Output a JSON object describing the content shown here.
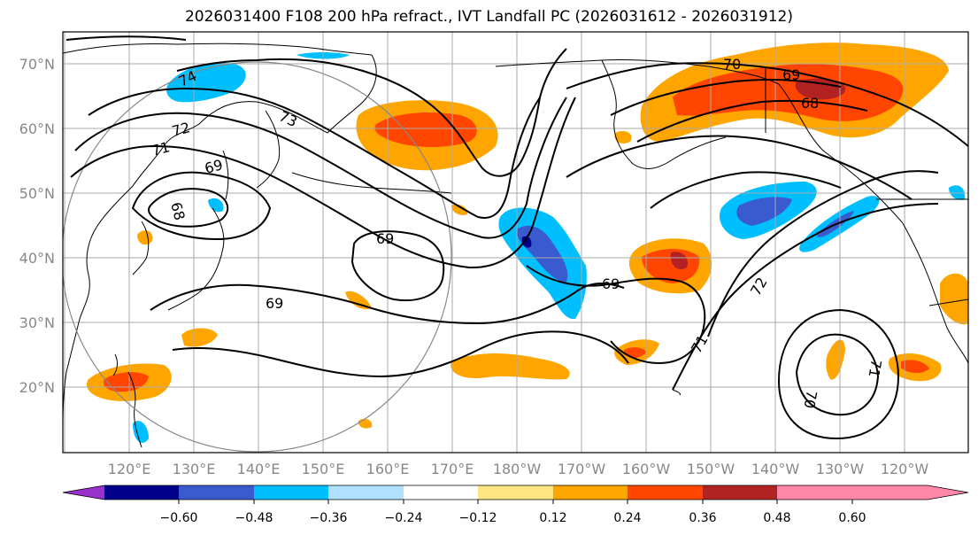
{
  "title": "2026031400 F108 200 hPa refract., IVT Landfall PC (2026031612 - 2026031912)",
  "lat_labels": [
    "70°N",
    "60°N",
    "50°N",
    "40°N",
    "30°N",
    "20°N"
  ],
  "lon_labels": [
    "120°E",
    "130°E",
    "140°E",
    "150°E",
    "160°E",
    "170°E",
    "180°W",
    "170°W",
    "160°W",
    "150°W",
    "140°W",
    "130°W",
    "120°W"
  ],
  "contour_labels": [
    "74",
    "72",
    "73",
    "71",
    "69",
    "68",
    "69",
    "69",
    "69",
    "70",
    "69",
    "68",
    "72",
    "71",
    "70",
    "71"
  ],
  "colorbar": {
    "colors": [
      "#9932CC",
      "#00008B",
      "#3A5BCF",
      "#00BFFF",
      "#B0E0FF",
      "#FFFFFF",
      "#FFE680",
      "#FFA500",
      "#FF4500",
      "#B22222",
      "#FF88AA"
    ],
    "tick_labels": [
      "−0.60",
      "−0.48",
      "−0.36",
      "−0.24",
      "−0.12",
      "0.12",
      "0.24",
      "0.36",
      "0.48",
      "0.60"
    ]
  },
  "colors": {
    "coast": "#000000",
    "grid": "#aaaaaa",
    "circle": "#888888",
    "contour": "#000000"
  }
}
